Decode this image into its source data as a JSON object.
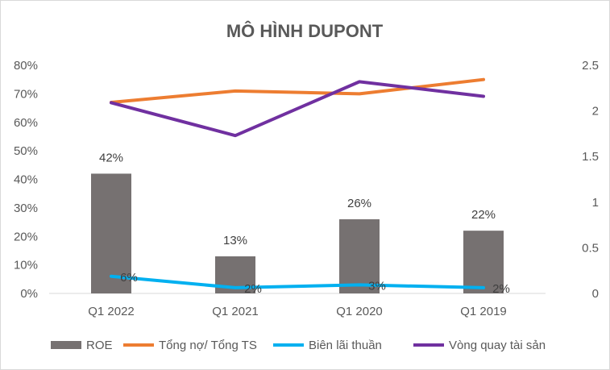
{
  "chart_data": {
    "type": "bar",
    "title": "MÔ HÌNH DUPONT",
    "categories": [
      "Q1 2022",
      "Q1 2021",
      "Q1 2020",
      "Q1 2019"
    ],
    "y_left": {
      "range": [
        0,
        0.8
      ],
      "ticks": [
        0,
        0.1,
        0.2,
        0.3,
        0.4,
        0.5,
        0.6,
        0.7,
        0.8
      ],
      "tick_labels": [
        "0%",
        "10%",
        "20%",
        "30%",
        "40%",
        "50%",
        "60%",
        "70%",
        "80%"
      ]
    },
    "y_right": {
      "range": [
        0,
        2.5
      ],
      "ticks": [
        0,
        0.5,
        1,
        1.5,
        2,
        2.5
      ],
      "tick_labels": [
        "0",
        "0.5",
        "1",
        "1.5",
        "2",
        "2.5"
      ]
    },
    "grid": false,
    "legend_position": "bottom",
    "series": [
      {
        "name": "ROE",
        "type": "bar",
        "axis": "left",
        "color": "#767171",
        "values": [
          0.42,
          0.13,
          0.26,
          0.22
        ],
        "data_labels": [
          "42%",
          "13%",
          "26%",
          "22%"
        ]
      },
      {
        "name": "Tổng nợ/ Tổng TS",
        "type": "line",
        "axis": "left",
        "color": "#ED7D31",
        "values": [
          0.67,
          0.71,
          0.7,
          0.75
        ]
      },
      {
        "name": "Biên lãi thuần",
        "type": "line",
        "axis": "left",
        "color": "#00B0F0",
        "values": [
          0.06,
          0.02,
          0.03,
          0.02
        ],
        "data_labels": [
          "6%",
          "2%",
          "3%",
          "2%"
        ]
      },
      {
        "name": "Vòng quay tài sản",
        "type": "line",
        "axis": "right",
        "color": "#7030A0",
        "values": [
          2.09,
          1.73,
          2.32,
          2.16
        ]
      }
    ]
  }
}
